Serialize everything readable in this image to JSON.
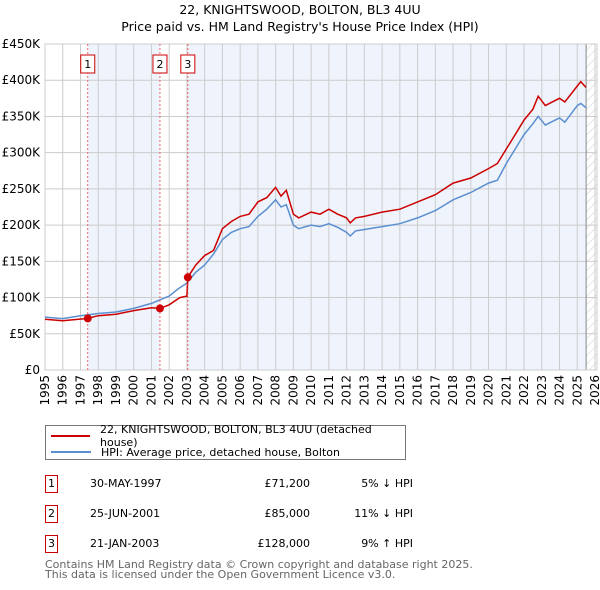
{
  "title": "22, KNIGHTSWOOD, BOLTON, BL3 4UU",
  "subtitle": "Price paid vs. HM Land Registry's House Price Index (HPI)",
  "chart_data": {
    "type": "line",
    "ylim": [
      0,
      450000
    ],
    "xlim": [
      1995,
      2026
    ],
    "yticks": [
      {
        "v": 0,
        "label": "£0"
      },
      {
        "v": 50000,
        "label": "£50K"
      },
      {
        "v": 100000,
        "label": "£100K"
      },
      {
        "v": 150000,
        "label": "£150K"
      },
      {
        "v": 200000,
        "label": "£200K"
      },
      {
        "v": 250000,
        "label": "£250K"
      },
      {
        "v": 300000,
        "label": "£300K"
      },
      {
        "v": 350000,
        "label": "£350K"
      },
      {
        "v": 400000,
        "label": "£400K"
      },
      {
        "v": 450000,
        "label": "£450K"
      }
    ],
    "xticks": [
      "1995",
      "1996",
      "1997",
      "1998",
      "1999",
      "2000",
      "2001",
      "2002",
      "2003",
      "2004",
      "2005",
      "2006",
      "2007",
      "2008",
      "2009",
      "2010",
      "2011",
      "2012",
      "2013",
      "2014",
      "2015",
      "2016",
      "2017",
      "2018",
      "2019",
      "2020",
      "2021",
      "2022",
      "2023",
      "2024",
      "2025",
      "2026"
    ],
    "grid": true,
    "shaded_periods": [
      [
        1997.41,
        2001.48
      ],
      [
        2003.05,
        2025.5
      ]
    ],
    "data_end": 2025.5,
    "series": [
      {
        "name": "22, KNIGHTSWOOD, BOLTON, BL3 4UU (detached house)",
        "color": "#cc0000",
        "x": [
          1995,
          1996,
          1997.41,
          1998,
          1999,
          2000,
          2001,
          2001.48,
          2002,
          2002.6,
          2003.0,
          2003.05,
          2003.5,
          2004,
          2004.5,
          2005,
          2005.5,
          2006,
          2006.5,
          2007,
          2007.5,
          2008,
          2008.3,
          2008.6,
          2009,
          2009.3,
          2010,
          2010.5,
          2011,
          2011.5,
          2012,
          2012.2,
          2012.5,
          2013,
          2014,
          2015,
          2016,
          2017,
          2018,
          2019,
          2020,
          2020.5,
          2021,
          2021.5,
          2022,
          2022.5,
          2022.8,
          2023.2,
          2024,
          2024.3,
          2025,
          2025.2,
          2025.5
        ],
        "y": [
          70000,
          68000,
          71200,
          75000,
          77000,
          82000,
          86000,
          85000,
          90000,
          100000,
          102000,
          128000,
          145000,
          158000,
          165000,
          195000,
          205000,
          212000,
          215000,
          232000,
          238000,
          252000,
          240000,
          248000,
          215000,
          210000,
          218000,
          215000,
          222000,
          215000,
          210000,
          203000,
          210000,
          212000,
          218000,
          222000,
          232000,
          242000,
          258000,
          265000,
          278000,
          285000,
          305000,
          325000,
          345000,
          360000,
          378000,
          365000,
          375000,
          370000,
          392000,
          398000,
          390000
        ]
      },
      {
        "name": "HPI: Average price, detached house, Bolton",
        "color": "#5b8fd0",
        "x": [
          1995,
          1996,
          1997,
          1998,
          1999,
          2000,
          2001,
          2001.5,
          2002,
          2002.5,
          2003,
          2003.5,
          2004,
          2004.5,
          2005,
          2005.5,
          2006,
          2006.5,
          2007,
          2007.5,
          2008,
          2008.3,
          2008.6,
          2009,
          2009.3,
          2010,
          2010.5,
          2011,
          2011.5,
          2012,
          2012.2,
          2012.5,
          2013,
          2014,
          2015,
          2016,
          2017,
          2018,
          2019,
          2020,
          2020.5,
          2021,
          2021.5,
          2022,
          2022.5,
          2022.8,
          2023.2,
          2024,
          2024.3,
          2025,
          2025.2,
          2025.5
        ],
        "y": [
          73000,
          71000,
          75000,
          78000,
          80000,
          85000,
          92000,
          97000,
          102000,
          112000,
          120000,
          135000,
          145000,
          160000,
          180000,
          190000,
          195000,
          198000,
          212000,
          222000,
          235000,
          225000,
          228000,
          200000,
          195000,
          200000,
          198000,
          202000,
          197000,
          190000,
          185000,
          192000,
          194000,
          198000,
          202000,
          210000,
          220000,
          235000,
          245000,
          258000,
          262000,
          285000,
          305000,
          325000,
          340000,
          350000,
          338000,
          348000,
          342000,
          365000,
          368000,
          362000
        ]
      }
    ],
    "sales": [
      {
        "label": "1",
        "x": 1997.41,
        "y": 71200
      },
      {
        "label": "2",
        "x": 2001.48,
        "y": 85000
      },
      {
        "label": "3",
        "x": 2003.05,
        "y": 128000
      }
    ]
  },
  "legend": {
    "items": [
      {
        "label": "22, KNIGHTSWOOD, BOLTON, BL3 4UU (detached house)",
        "color": "#cc0000"
      },
      {
        "label": "HPI: Average price, detached house, Bolton",
        "color": "#5b8fd0"
      }
    ]
  },
  "transactions": [
    {
      "num": "1",
      "date": "30-MAY-1997",
      "price": "£71,200",
      "hpi": "5% ↓ HPI"
    },
    {
      "num": "2",
      "date": "25-JUN-2001",
      "price": "£85,000",
      "hpi": "11% ↓ HPI"
    },
    {
      "num": "3",
      "date": "21-JAN-2003",
      "price": "£128,000",
      "hpi": "9% ↑ HPI"
    }
  ],
  "footer": {
    "line1": "Contains HM Land Registry data © Crown copyright and database right 2025.",
    "line2": "This data is licensed under the Open Government Licence v3.0."
  }
}
